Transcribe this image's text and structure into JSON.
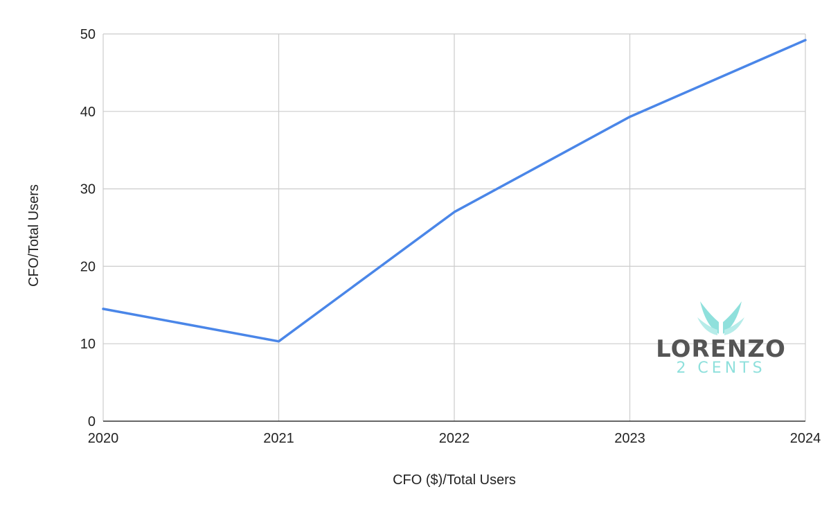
{
  "chart_data": {
    "type": "line",
    "title": "",
    "xlabel": "CFO ($)/Total Users",
    "ylabel": "CFO/Total Users",
    "categories": [
      "2020",
      "2021",
      "2022",
      "2023",
      "2024"
    ],
    "series": [
      {
        "values": [
          14.5,
          10.3,
          27.0,
          39.3,
          49.2
        ]
      }
    ],
    "ylim": [
      0,
      50
    ],
    "yticks": [
      "0",
      "10",
      "20",
      "30",
      "40",
      "50"
    ],
    "grid": true,
    "legend": "none"
  },
  "watermark": {
    "line1": "LORENZO",
    "line2": "2 CENTS",
    "icon": "wings-icon"
  },
  "colors": {
    "series": "#4a86e8",
    "watermark_text": "#555555",
    "watermark_accent": "#8fe0dc"
  }
}
